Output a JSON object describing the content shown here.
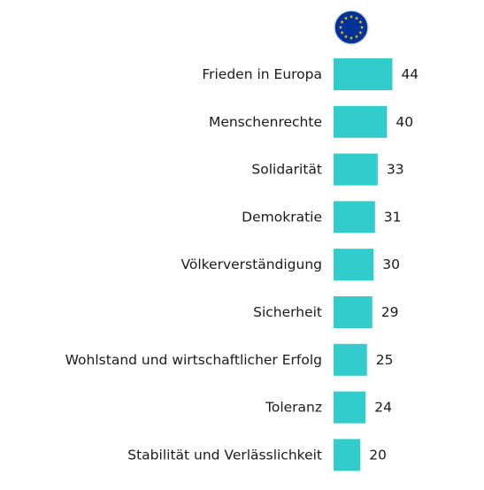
{
  "chart_data": {
    "type": "bar",
    "orientation": "horizontal",
    "categories": [
      "Frieden in Europa",
      "Menschenrechte",
      "Solidarität",
      "Demokratie",
      "Völkerverständigung",
      "Sicherheit",
      "Wohlstand und wirtschaftlicher Erfolg",
      "Toleranz",
      "Stabilität und Verlässlichkeit"
    ],
    "series": [
      {
        "values": [
          44,
          40,
          33,
          31,
          30,
          29,
          25,
          24,
          20
        ],
        "color": "#33cccc"
      }
    ],
    "header_icon": "eu-flag-icon",
    "title": "",
    "xlabel": "",
    "ylabel": "",
    "grid": false,
    "colors": {
      "bar": "#33cccc",
      "label": "#1a1a1a",
      "eu_blue": "#003399",
      "eu_star": "#ffcc00"
    }
  }
}
